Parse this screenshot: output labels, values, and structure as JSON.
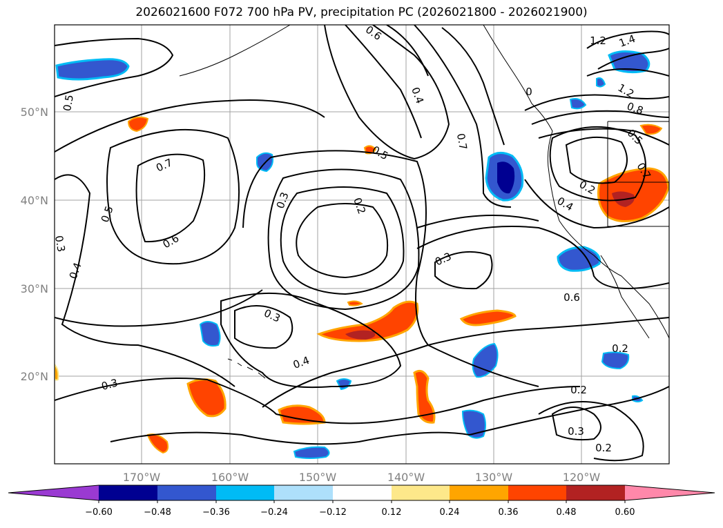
{
  "title": "2026021600 F072 700 hPa PV, precipitation PC (2026021800 - 2026021900)",
  "lat_labels": [
    "50°N",
    "40°N",
    "30°N",
    "20°N"
  ],
  "lon_labels": [
    "170°W",
    "160°W",
    "150°W",
    "140°W",
    "130°W",
    "120°W"
  ],
  "colorbar": {
    "tick_labels": [
      "−0.60",
      "−0.48",
      "−0.36",
      "−0.24",
      "−0.12",
      "0.12",
      "0.24",
      "0.36",
      "0.48",
      "0.60"
    ],
    "colors": [
      "#9a3ad2",
      "#000091",
      "#3357cf",
      "#00bbf5",
      "#aee0fb",
      "#ffffff",
      "#fde88a",
      "#ffa500",
      "#ff4400",
      "#b22222",
      "#ff88aa"
    ]
  },
  "contour_labels": [
    "0.6",
    "1.2",
    "1.4",
    "0.5",
    "0.4",
    "0.7",
    "0",
    "1.2",
    "0.8",
    "0.5",
    "0.7",
    "0.5",
    "0.3",
    "0.2",
    "0.6",
    "0.5",
    "0.7",
    "0.4",
    "0.2",
    "0.3",
    "0.4",
    "0.3",
    "0.4",
    "0.3",
    "0.6",
    "0.2",
    "0.2",
    "0.3",
    "0.2",
    "0.3"
  ]
}
